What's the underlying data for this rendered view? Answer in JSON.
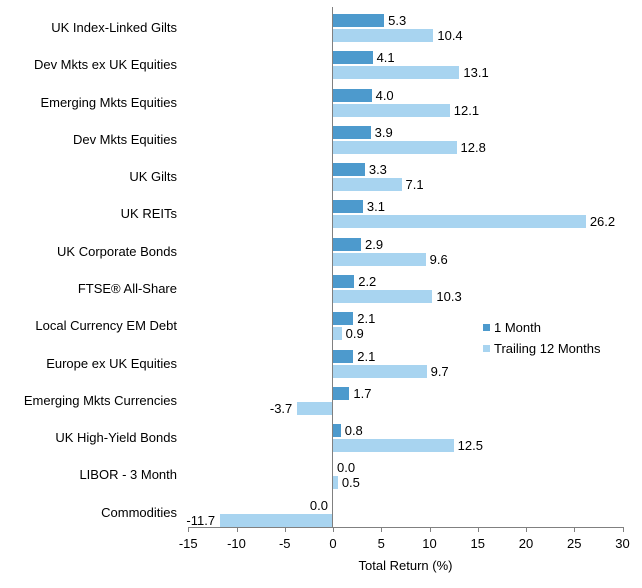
{
  "chart_data": {
    "type": "bar",
    "orientation": "horizontal",
    "title": "",
    "xlabel": "Total Return (%)",
    "ylabel": "",
    "xlim": [
      -15,
      30
    ],
    "xticks": [
      -15,
      -10,
      -5,
      0,
      5,
      10,
      15,
      20,
      25,
      30
    ],
    "grid": false,
    "legend_position": "center-right",
    "axis_color": "#808080",
    "text_color": "#000000",
    "categories": [
      "UK Index-Linked Gilts",
      "Dev Mkts ex UK Equities",
      "Emerging Mkts Equities",
      "Dev Mkts Equities",
      "UK Gilts",
      "UK REITs",
      "UK Corporate Bonds",
      "FTSE® All-Share",
      "Local Currency EM Debt",
      "Europe ex UK Equities",
      "Emerging Mkts Currencies",
      "UK High-Yield Bonds",
      "LIBOR - 3 Month",
      "Commodities"
    ],
    "series": [
      {
        "name": "1 Month",
        "color": "#4d9acd",
        "values": [
          5.3,
          4.1,
          4.0,
          3.9,
          3.3,
          3.1,
          2.9,
          2.2,
          2.1,
          2.1,
          1.7,
          0.8,
          0.0,
          0.0
        ],
        "labels": [
          "5.3",
          "4.1",
          "4.0",
          "3.9",
          "3.3",
          "3.1",
          "2.9",
          "2.2",
          "2.1",
          "2.1",
          "1.7",
          "0.8",
          "0.0",
          "0.0"
        ],
        "label_sides": [
          "right",
          "right",
          "right",
          "right",
          "right",
          "right",
          "right",
          "right",
          "right",
          "right",
          "right",
          "right",
          "right",
          "left"
        ]
      },
      {
        "name": "Trailing 12 Months",
        "color": "#a8d4f0",
        "values": [
          10.4,
          13.1,
          12.1,
          12.8,
          7.1,
          26.2,
          9.6,
          10.3,
          0.9,
          9.7,
          -3.7,
          12.5,
          0.5,
          -11.7
        ],
        "labels": [
          "10.4",
          "13.1",
          "12.1",
          "12.8",
          "7.1",
          "26.2",
          "9.6",
          "10.3",
          "0.9",
          "9.7",
          "-3.7",
          "12.5",
          "0.5",
          "-11.7"
        ],
        "label_sides": [
          "right",
          "right",
          "right",
          "right",
          "right",
          "right",
          "right",
          "right",
          "right",
          "right",
          "left",
          "right",
          "right",
          "left"
        ]
      }
    ]
  }
}
